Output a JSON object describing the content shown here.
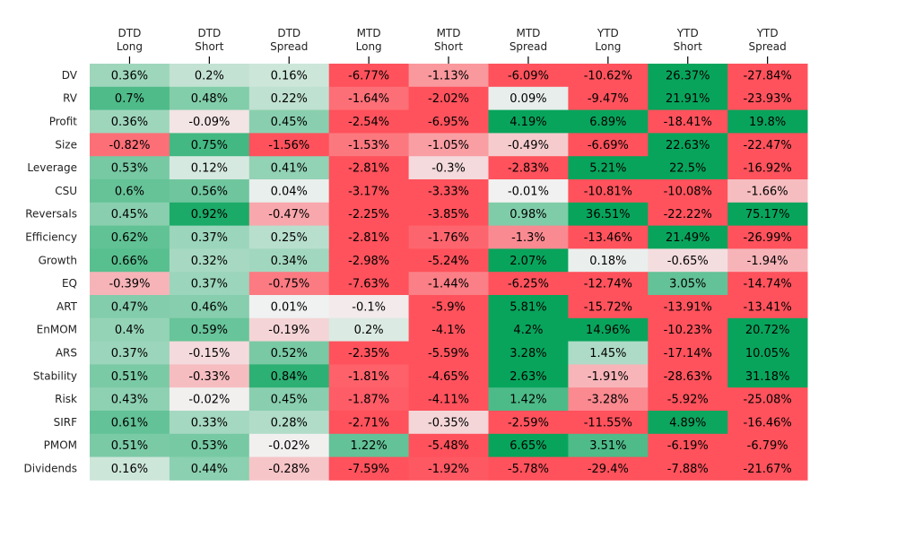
{
  "chart_data": {
    "type": "heatmap",
    "title": "",
    "xlabel": "",
    "ylabel": "",
    "columns": [
      [
        "DTD",
        "Long"
      ],
      [
        "DTD",
        "Short"
      ],
      [
        "DTD",
        "Spread"
      ],
      [
        "MTD",
        "Long"
      ],
      [
        "MTD",
        "Short"
      ],
      [
        "MTD",
        "Spread"
      ],
      [
        "YTD",
        "Long"
      ],
      [
        "YTD",
        "Short"
      ],
      [
        "YTD",
        "Spread"
      ]
    ],
    "rows": [
      "DV",
      "RV",
      "Profit",
      "Size",
      "Leverage",
      "CSU",
      "Reversals",
      "Efficiency",
      "Growth",
      "EQ",
      "ART",
      "EnMOM",
      "ARS",
      "Stability",
      "Risk",
      "SIRF",
      "PMOM",
      "Dividends"
    ],
    "value_suffix": "%",
    "values": [
      [
        0.36,
        0.2,
        0.16,
        -6.77,
        -1.13,
        -6.09,
        -10.62,
        26.37,
        -27.84
      ],
      [
        0.7,
        0.48,
        0.22,
        -1.64,
        -2.02,
        0.09,
        -9.47,
        21.91,
        -23.93
      ],
      [
        0.36,
        -0.09,
        0.45,
        -2.54,
        -6.95,
        4.19,
        6.89,
        -18.41,
        19.8
      ],
      [
        -0.82,
        0.75,
        -1.56,
        -1.53,
        -1.05,
        -0.49,
        -6.69,
        22.63,
        -22.47
      ],
      [
        0.53,
        0.12,
        0.41,
        -2.81,
        -0.3,
        -2.83,
        5.21,
        22.5,
        -16.92
      ],
      [
        0.6,
        0.56,
        0.04,
        -3.17,
        -3.33,
        -0.01,
        -10.81,
        -10.08,
        -1.66
      ],
      [
        0.45,
        0.92,
        -0.47,
        -2.25,
        -3.85,
        0.98,
        36.51,
        -22.22,
        75.17
      ],
      [
        0.62,
        0.37,
        0.25,
        -2.81,
        -1.76,
        -1.3,
        -13.46,
        21.49,
        -26.99
      ],
      [
        0.66,
        0.32,
        0.34,
        -2.98,
        -5.24,
        2.07,
        0.18,
        -0.65,
        -1.94
      ],
      [
        -0.39,
        0.37,
        -0.75,
        -7.63,
        -1.44,
        -6.25,
        -12.74,
        3.05,
        -14.74
      ],
      [
        0.47,
        0.46,
        0.01,
        -0.1,
        -5.9,
        5.81,
        -15.72,
        -13.91,
        -13.41
      ],
      [
        0.4,
        0.59,
        -0.19,
        0.2,
        -4.1,
        4.2,
        14.96,
        -10.23,
        20.72
      ],
      [
        0.37,
        -0.15,
        0.52,
        -2.35,
        -5.59,
        3.28,
        1.45,
        -17.14,
        10.05
      ],
      [
        0.51,
        -0.33,
        0.84,
        -1.81,
        -4.65,
        2.63,
        -1.91,
        -28.63,
        31.18
      ],
      [
        0.43,
        -0.02,
        0.45,
        -1.87,
        -4.11,
        1.42,
        -3.28,
        -5.92,
        -25.08
      ],
      [
        0.61,
        0.33,
        0.28,
        -2.71,
        -0.35,
        -2.59,
        -11.55,
        4.89,
        -16.46
      ],
      [
        0.51,
        0.53,
        -0.02,
        1.22,
        -5.48,
        6.65,
        3.51,
        -6.19,
        -6.79
      ],
      [
        0.16,
        0.44,
        -0.28,
        -7.59,
        -1.92,
        -5.78,
        -29.4,
        -7.88,
        -21.67
      ]
    ],
    "colormap": {
      "negative": "#ff525c",
      "neutral": "#f2f2f2",
      "positive": "#08a45c"
    },
    "color_scale_per_column_group": {
      "DTD": [
        -1.0,
        1.0
      ],
      "MTD": [
        -2.0,
        2.0
      ],
      "YTD": [
        -5.0,
        5.0
      ]
    },
    "grid": false,
    "legend": "none"
  }
}
